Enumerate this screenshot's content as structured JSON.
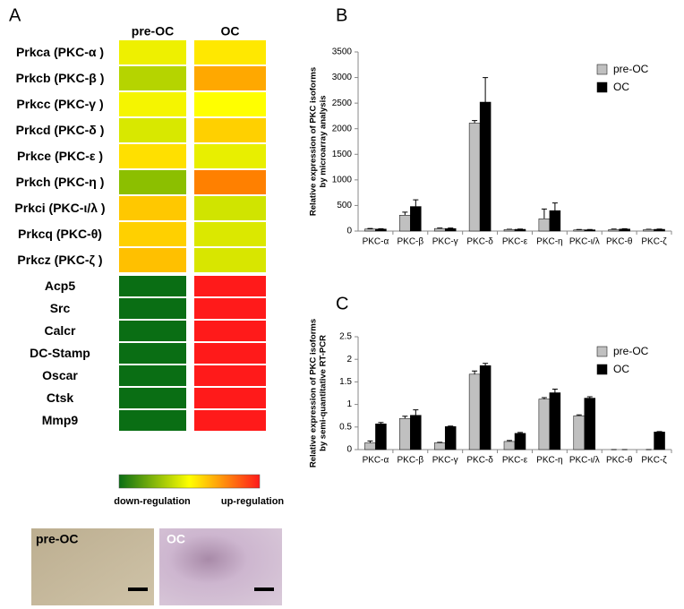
{
  "chart_data": [
    {
      "type": "heatmap",
      "panel": "A",
      "columns": [
        "pre-OC",
        "OC"
      ],
      "rows": [
        "Prkca (PKC-α )",
        "Prkcb (PKC-β )",
        "Prkcc (PKC-γ )",
        "Prkcd (PKC-δ )",
        "Prkce (PKC-ε )",
        "Prkch (PKC-η )",
        "Prkci (PKC-ι/λ )",
        "Prkcq (PKC-θ)",
        "Prkcz (PKC-ζ )",
        "Acp5",
        "Src",
        "Calcr",
        "DC-Stamp",
        "Oscar",
        "Ctsk",
        "Mmp9"
      ],
      "colors": [
        [
          "#eef000",
          "#ffe800"
        ],
        [
          "#b5d400",
          "#ffa800"
        ],
        [
          "#f5f500",
          "#ffff00"
        ],
        [
          "#d8e800",
          "#ffd000"
        ],
        [
          "#ffe000",
          "#e8ef00"
        ],
        [
          "#8cbf00",
          "#ff8000"
        ],
        [
          "#ffc800",
          "#d0e400"
        ],
        [
          "#ffd000",
          "#dbe800"
        ],
        [
          "#ffc000",
          "#d8e600"
        ],
        [
          "#0a6e14",
          "#ff1a1a"
        ],
        [
          "#0a6e14",
          "#ff1a1a"
        ],
        [
          "#0a6e14",
          "#ff1a1a"
        ],
        [
          "#0a6e14",
          "#ff1a1a"
        ],
        [
          "#0a6e14",
          "#ff1a1a"
        ],
        [
          "#0a6e14",
          "#ff1a1a"
        ],
        [
          "#0a6e14",
          "#ff1a1a"
        ]
      ],
      "colorbar": [
        "#0a6e14",
        "#ffff00",
        "#ff1a1a"
      ],
      "colorbar_labels": [
        "down-regulation",
        "up-regulation"
      ],
      "images": [
        "pre-OC",
        "OC"
      ]
    },
    {
      "type": "bar",
      "panel": "B",
      "ylabel": [
        "Relative expression of PKC isoforms",
        "by microarray analysis"
      ],
      "categories": [
        "PKC-α",
        "PKC-β",
        "PKC-γ",
        "PKC-δ",
        "PKC-ε",
        "PKC-η",
        "PKC-ι/λ",
        "PKC-θ",
        "PKC-ζ"
      ],
      "series": [
        {
          "name": "pre-OC",
          "color": "#c0c0c0",
          "values": [
            40,
            310,
            50,
            2110,
            30,
            240,
            25,
            30,
            30
          ],
          "errors": [
            10,
            60,
            10,
            50,
            5,
            190,
            5,
            10,
            5
          ]
        },
        {
          "name": "OC",
          "color": "#000000",
          "values": [
            40,
            480,
            50,
            2520,
            35,
            400,
            25,
            40,
            35
          ],
          "errors": [
            5,
            130,
            10,
            480,
            5,
            150,
            5,
            5,
            5
          ]
        }
      ],
      "ylim": [
        0,
        3500
      ],
      "yticks": [
        0,
        500,
        1000,
        1500,
        2000,
        2500,
        3000,
        3500
      ]
    },
    {
      "type": "bar",
      "panel": "C",
      "ylabel": [
        "Relative expression of PKC isoforms",
        "by semi-quantitative RT-PCR"
      ],
      "categories": [
        "PKC-α",
        "PKC-β",
        "PKC-γ",
        "PKC-δ",
        "PKC-ε",
        "PKC-η",
        "PKC-ι/λ",
        "PKC-θ",
        "PKC-ζ"
      ],
      "series": [
        {
          "name": "pre-OC",
          "color": "#c0c0c0",
          "values": [
            0.15,
            0.69,
            0.15,
            1.67,
            0.18,
            1.12,
            0.75,
            0,
            0
          ],
          "errors": [
            0.04,
            0.05,
            0.01,
            0.07,
            0.02,
            0.03,
            0.02,
            0,
            0
          ]
        },
        {
          "name": "OC",
          "color": "#000000",
          "values": [
            0.57,
            0.76,
            0.51,
            1.86,
            0.36,
            1.26,
            1.14,
            0,
            0.39
          ],
          "errors": [
            0.03,
            0.12,
            0.01,
            0.05,
            0.02,
            0.08,
            0.03,
            0,
            0.01
          ]
        }
      ],
      "ylim": [
        0,
        2.5
      ],
      "yticks": [
        0,
        0.5,
        1,
        1.5,
        2,
        2.5
      ]
    }
  ]
}
